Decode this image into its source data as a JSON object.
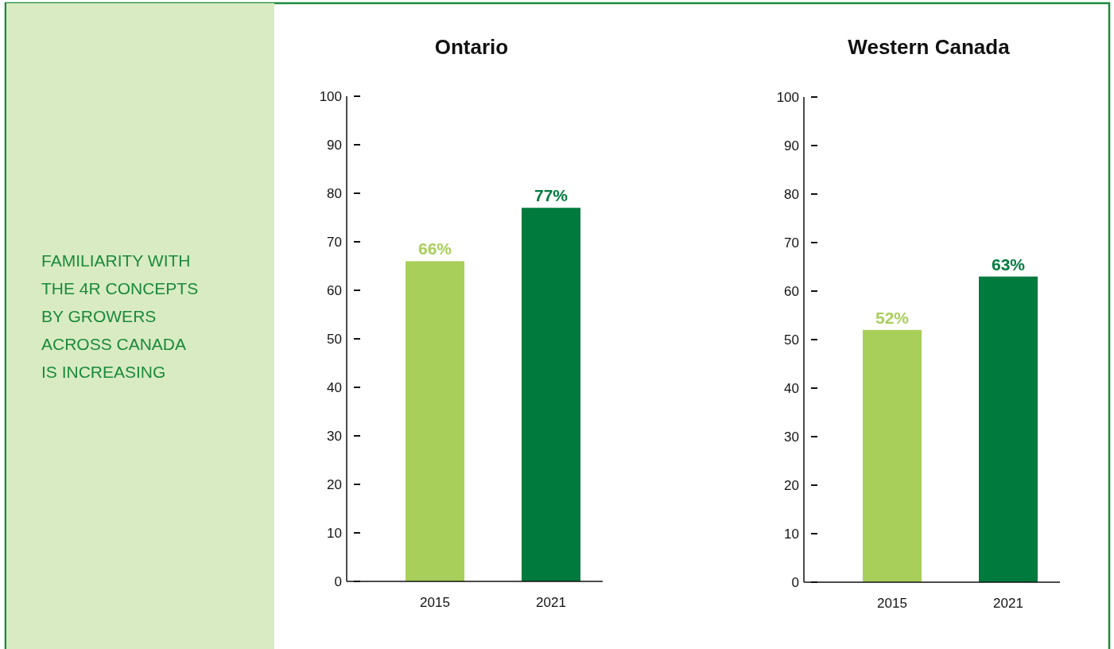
{
  "chart_data": [
    {
      "type": "other",
      "title": "FAMILIARITY WITH THE 4R CONCEPTS BY GROWERS ACROSS CANADA IS INCREASING"
    },
    {
      "type": "bar",
      "title": "Ontario",
      "categories": [
        "2015",
        "2021"
      ],
      "values": [
        66,
        77
      ],
      "colors": [
        "#a8cf5a",
        "#007a3d"
      ],
      "value_labels": [
        "66%",
        "77%"
      ],
      "ylim": [
        0,
        100
      ],
      "yticks": [
        0,
        10,
        20,
        30,
        40,
        50,
        60,
        70,
        80,
        90,
        100
      ],
      "grid": false
    },
    {
      "type": "bar",
      "title": "Western Canada",
      "categories": [
        "2015",
        "2021"
      ],
      "values": [
        52,
        63
      ],
      "colors": [
        "#a8cf5a",
        "#007a3d"
      ],
      "value_labels": [
        "52%",
        "63%"
      ],
      "ylim": [
        0,
        100
      ],
      "yticks": [
        0,
        10,
        20,
        30,
        40,
        50,
        60,
        70,
        80,
        90,
        100
      ],
      "grid": false
    }
  ]
}
